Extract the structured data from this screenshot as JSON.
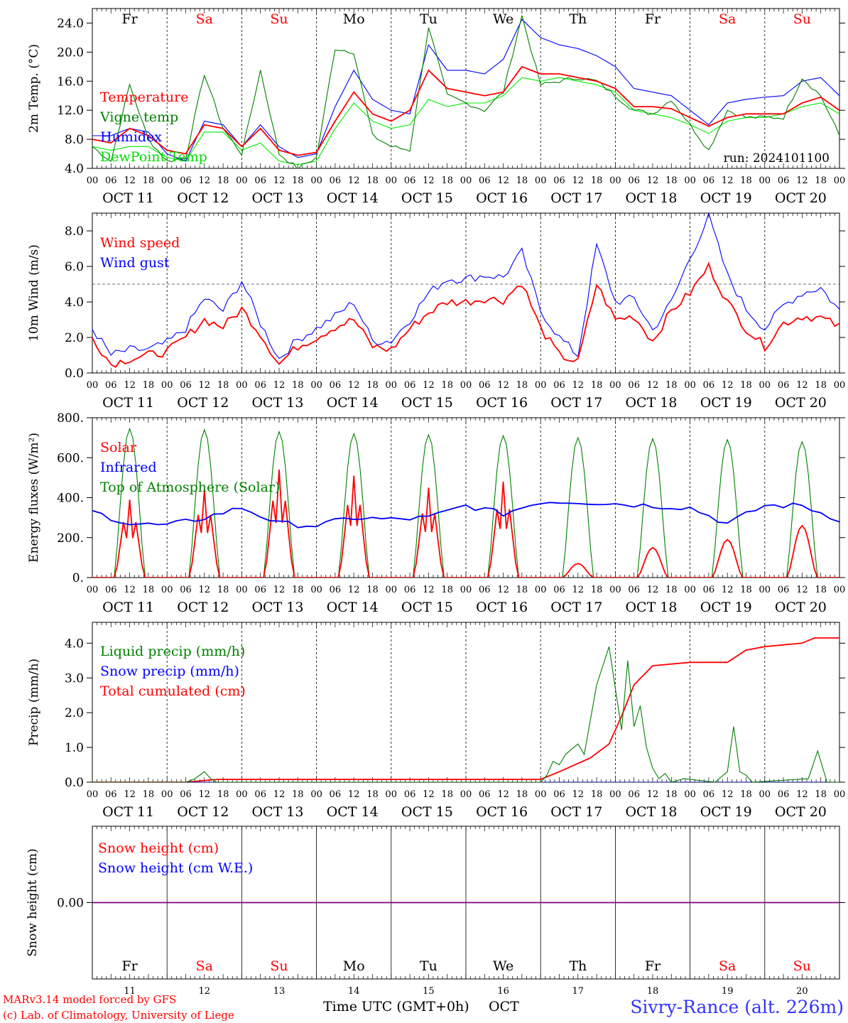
{
  "footer": {
    "credit1": "MARv3.14 model forced by GFS",
    "credit2": "(c) Lab. of Climatology, University of Liege",
    "xlabel": "Time UTC (GMT+0h)",
    "month": "OCT",
    "station": "Sivry-Rance (alt. 226m)"
  },
  "days": {
    "weekday": [
      "Fr",
      "Sa",
      "Su",
      "Mo",
      "Tu",
      "We",
      "Th",
      "Fr",
      "Sa",
      "Su"
    ],
    "weekend": [
      false,
      true,
      true,
      false,
      false,
      false,
      false,
      false,
      true,
      true
    ],
    "date_labels": [
      "OCT 11",
      "OCT 12",
      "OCT 13",
      "OCT 14",
      "OCT 15",
      "OCT 16",
      "OCT 17",
      "OCT 18",
      "OCT 19",
      "OCT 20"
    ],
    "day_numbers": [
      "11",
      "12",
      "13",
      "14",
      "15",
      "16",
      "17",
      "18",
      "19",
      "20"
    ],
    "hour_ticks": [
      "00",
      "06",
      "12",
      "18"
    ],
    "final_hour": "00"
  },
  "colors": {
    "red": "#ff0000",
    "green": "#008000",
    "blue": "#0000ff",
    "lightgreen": "#00ee00",
    "purple": "#7f007f",
    "text_red": "#ff0000"
  },
  "chart_data": [
    {
      "type": "line",
      "id": "temp",
      "ylabel": "2m Temp. (°C)",
      "ylim": [
        4,
        26
      ],
      "yticks": [
        "4.0",
        "8.0",
        "12.0",
        "16.0",
        "20.0",
        "24.0"
      ],
      "ytick_values": [
        4,
        8,
        12,
        16,
        20,
        24
      ],
      "annotation": "run: 2024101100",
      "x": [
        0,
        6,
        12,
        18,
        24,
        30,
        36,
        42,
        48,
        54,
        60,
        66,
        72,
        78,
        84,
        90,
        96,
        102,
        108,
        114,
        120,
        126,
        132,
        138,
        144,
        150,
        156,
        162,
        168,
        174,
        180,
        186,
        192,
        198,
        204,
        210,
        216,
        222,
        228,
        234,
        240
      ],
      "series": [
        {
          "name": "Temperature",
          "color": "red",
          "values": [
            8.0,
            7.5,
            9.5,
            8.5,
            6.5,
            6.0,
            10.0,
            9.5,
            7.0,
            9.5,
            6.5,
            5.8,
            6.2,
            10.5,
            14.5,
            11.5,
            10.5,
            12.0,
            17.5,
            15.0,
            14.5,
            14.0,
            14.5,
            18.0,
            17.0,
            17.0,
            16.5,
            16.0,
            15.0,
            12.5,
            12.5,
            12.2,
            11.0,
            9.8,
            11.0,
            11.5,
            11.5,
            11.5,
            13.0,
            13.8,
            12.0
          ]
        },
        {
          "name": "Vigne temp",
          "color": "green",
          "values": [
            7.0,
            5.0,
            15.5,
            8.0,
            5.0,
            5.5,
            17.0,
            9.5,
            6.0,
            17.5,
            6.0,
            4.0,
            5.5,
            20.5,
            20.0,
            8.5,
            7.0,
            6.5,
            23.5,
            14.0,
            13.0,
            12.0,
            14.5,
            25.0,
            15.5,
            16.0,
            16.5,
            16.0,
            14.0,
            12.0,
            11.5,
            13.5,
            10.0,
            6.5,
            12.0,
            11.0,
            11.0,
            11.0,
            16.5,
            14.0,
            8.5
          ]
        },
        {
          "name": "Humidex",
          "color": "blue",
          "values": [
            8.5,
            8.5,
            9.5,
            9.0,
            6.0,
            5.0,
            10.5,
            10.0,
            7.0,
            10.0,
            7.0,
            5.5,
            6.0,
            12.5,
            17.5,
            13.5,
            12.0,
            11.5,
            21.0,
            17.5,
            17.5,
            17.0,
            19.0,
            24.5,
            22.0,
            21.0,
            20.5,
            19.5,
            18.0,
            15.0,
            14.5,
            14.0,
            12.0,
            10.0,
            13.0,
            13.5,
            13.8,
            14.0,
            16.0,
            16.5,
            14.0
          ]
        },
        {
          "name": "DewPoint Temp",
          "color": "lightgreen",
          "values": [
            7.0,
            6.5,
            7.0,
            7.0,
            5.5,
            5.0,
            9.0,
            9.0,
            6.5,
            7.5,
            5.0,
            4.5,
            5.0,
            9.5,
            13.0,
            10.5,
            9.5,
            10.0,
            13.5,
            12.5,
            13.0,
            13.0,
            14.0,
            16.5,
            16.0,
            16.5,
            16.0,
            15.5,
            14.5,
            12.0,
            11.5,
            11.0,
            10.0,
            8.8,
            10.5,
            11.0,
            11.0,
            11.5,
            12.5,
            13.0,
            11.5
          ]
        }
      ]
    },
    {
      "type": "line",
      "id": "wind",
      "ylabel": "10m Wind (m/s)",
      "ylim": [
        0,
        9
      ],
      "yticks": [
        "0.0",
        "2.0",
        "4.0",
        "6.0",
        "8.0"
      ],
      "ytick_values": [
        0,
        2,
        4,
        6,
        8
      ],
      "reference_line": 5,
      "x": [
        0,
        6,
        12,
        18,
        24,
        30,
        36,
        42,
        48,
        54,
        60,
        66,
        72,
        78,
        84,
        90,
        96,
        102,
        108,
        114,
        120,
        126,
        132,
        138,
        144,
        150,
        156,
        162,
        168,
        174,
        180,
        186,
        192,
        198,
        204,
        210,
        216,
        222,
        228,
        234,
        240
      ],
      "series": [
        {
          "name": "Wind speed",
          "color": "red",
          "values": [
            2.0,
            0.5,
            0.8,
            1.0,
            1.2,
            2.0,
            3.0,
            2.6,
            3.6,
            2.2,
            0.5,
            1.5,
            2.0,
            2.6,
            3.0,
            1.5,
            1.3,
            2.5,
            3.4,
            4.0,
            4.0,
            4.2,
            4.1,
            5.1,
            2.5,
            1.0,
            0.6,
            5.0,
            3.0,
            3.2,
            1.8,
            3.5,
            4.5,
            6.0,
            4.0,
            2.5,
            1.5,
            2.8,
            3.2,
            3.1,
            2.6
          ]
        },
        {
          "name": "Wind gust",
          "color": "blue",
          "values": [
            2.5,
            1.0,
            1.3,
            1.3,
            1.7,
            2.5,
            4.2,
            3.5,
            5.2,
            2.8,
            0.8,
            1.9,
            2.5,
            3.2,
            4.0,
            1.8,
            1.8,
            3.0,
            4.5,
            5.3,
            5.3,
            5.5,
            5.4,
            6.8,
            3.5,
            2.0,
            1.0,
            7.2,
            4.0,
            4.2,
            2.4,
            4.0,
            6.5,
            8.8,
            5.5,
            3.6,
            2.5,
            3.8,
            4.5,
            4.8,
            3.5
          ]
        }
      ]
    },
    {
      "type": "line",
      "id": "flux",
      "ylabel": "Energy fluxes (W/m²)",
      "ylim": [
        0,
        800
      ],
      "yticks": [
        "0.",
        "200.",
        "400.",
        "600.",
        "800."
      ],
      "ytick_values": [
        0,
        200,
        400,
        600,
        800
      ],
      "x_daily_peak_hour": 12,
      "daytime_hours": [
        7,
        17
      ],
      "series": [
        {
          "name": "Solar",
          "color": "red",
          "daily_peak": [
            390,
            440,
            540,
            510,
            450,
            480,
            70,
            150,
            190,
            260
          ]
        },
        {
          "name": "Infrared",
          "color": "blue",
          "x": [
            0,
            12,
            24,
            36,
            48,
            60,
            72,
            84,
            96,
            108,
            120,
            132,
            144,
            156,
            168,
            180,
            192,
            204,
            216,
            228,
            240
          ],
          "values": [
            330,
            270,
            260,
            300,
            350,
            270,
            260,
            300,
            290,
            300,
            360,
            320,
            380,
            380,
            370,
            360,
            350,
            270,
            360,
            360,
            290
          ]
        },
        {
          "name": "Top of Atmosphere (Solar)",
          "color": "green",
          "daily_peak": [
            745,
            740,
            730,
            720,
            715,
            710,
            700,
            695,
            690,
            680
          ]
        }
      ]
    },
    {
      "type": "line",
      "id": "precip",
      "ylabel": "Precip (mm/h)",
      "ylim": [
        0,
        4.6
      ],
      "yticks": [
        "0.0",
        "1.0",
        "2.0",
        "3.0",
        "4.0"
      ],
      "ytick_values": [
        0,
        1,
        2,
        3,
        4
      ],
      "series": [
        {
          "name": "Liquid precip (mm/h)",
          "color": "green",
          "x": [
            0,
            30,
            33,
            36,
            38,
            40,
            144,
            146,
            148,
            150,
            152,
            156,
            158,
            162,
            166,
            170,
            172,
            174,
            176,
            178,
            180,
            182,
            184,
            186,
            190,
            200,
            204,
            206,
            208,
            210,
            212,
            230,
            233,
            236,
            240
          ],
          "values": [
            0,
            0,
            0.1,
            0.3,
            0.1,
            0,
            0,
            0.2,
            0.6,
            0.5,
            0.8,
            1.1,
            0.8,
            2.8,
            3.9,
            1.5,
            3.5,
            1.6,
            2.2,
            1.0,
            0.4,
            0.1,
            0.25,
            0,
            0.1,
            0,
            0.3,
            1.6,
            0.3,
            0.2,
            0,
            0.1,
            0.9,
            0,
            0
          ]
        },
        {
          "name": "Snow precip (mm/h)",
          "color": "blue",
          "x": [
            0,
            240
          ],
          "values": [
            0,
            0
          ]
        },
        {
          "name": "Total cumulated (cm)",
          "color": "red",
          "x": [
            0,
            30,
            40,
            144,
            150,
            160,
            166,
            170,
            174,
            180,
            192,
            204,
            210,
            216,
            228,
            232,
            240
          ],
          "values": [
            0,
            0,
            0.08,
            0.08,
            0.3,
            0.7,
            1.1,
            1.9,
            2.8,
            3.35,
            3.45,
            3.45,
            3.8,
            3.9,
            4.0,
            4.15,
            4.15
          ]
        }
      ]
    },
    {
      "type": "line",
      "id": "snow",
      "ylabel": "Snow height (cm)",
      "ylim": [
        -1,
        1
      ],
      "yticks": [
        "0.00"
      ],
      "ytick_values": [
        0
      ],
      "series": [
        {
          "name": "Snow height (cm)",
          "color": "red",
          "x": [
            0,
            240
          ],
          "values": [
            0,
            0
          ]
        },
        {
          "name": "Snow height (cm W.E.)",
          "color": "blue",
          "x": [
            0,
            240
          ],
          "values": [
            0,
            0
          ]
        }
      ]
    }
  ]
}
